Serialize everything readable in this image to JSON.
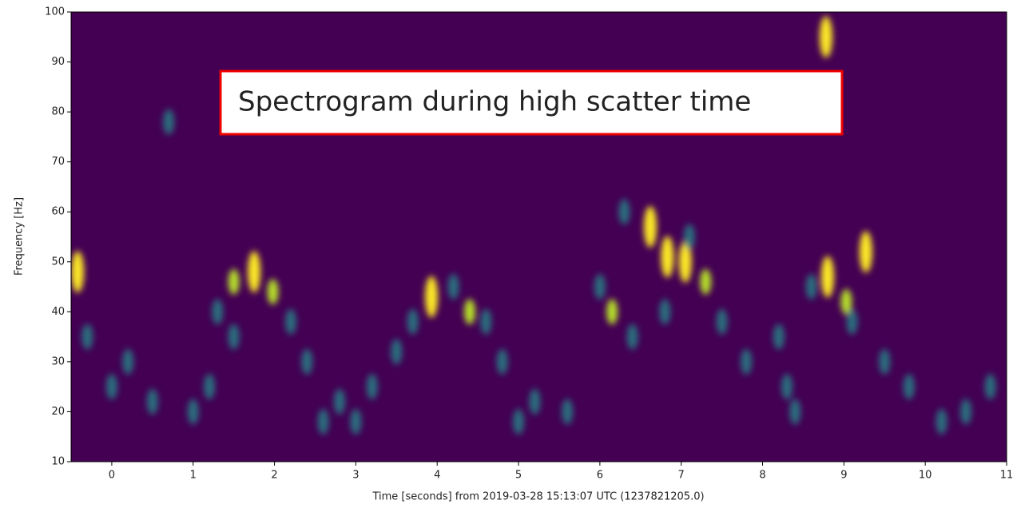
{
  "chart_data": {
    "type": "spectrogram",
    "xlabel": "Time [seconds] from 2019-03-28 15:13:07 UTC (1237821205.0)",
    "ylabel": "Frequency [Hz]",
    "annotation": "Spectrogram during high scatter time",
    "xlim": [
      -0.5,
      11
    ],
    "xticks": [
      0,
      1,
      2,
      3,
      4,
      5,
      6,
      7,
      8,
      9,
      10,
      11
    ],
    "ylim": [
      10,
      100
    ],
    "yticks": [
      10,
      20,
      30,
      40,
      50,
      60,
      70,
      80,
      90,
      100
    ],
    "background": "#440154",
    "hotspots": [
      {
        "color": "#fde725",
        "x": [
          -0.42,
          1.75,
          3.93,
          6.62,
          7.05,
          8.8,
          9.27,
          6.83,
          8.78
        ],
        "y": [
          48,
          48,
          43,
          57,
          50,
          47,
          52,
          51,
          95
        ]
      },
      {
        "color": "#b5de2b",
        "x": [
          1.98,
          6.15,
          9.03,
          4.4,
          7.3,
          1.5
        ],
        "y": [
          44,
          40,
          42,
          40,
          46,
          46
        ]
      },
      {
        "color": "#21918c",
        "x": [
          0.2,
          0.0,
          0.5,
          1.2,
          1.5,
          2.2,
          2.4,
          2.8,
          3.2,
          3.5,
          3.7,
          4.2,
          4.6,
          4.8,
          5.2,
          5.6,
          6.0,
          6.4,
          6.8,
          7.5,
          7.8,
          8.2,
          8.3,
          8.6,
          9.1,
          9.5,
          9.8,
          10.5,
          10.8,
          1.0,
          2.6,
          3.0,
          6.3,
          7.1,
          -0.3,
          10.2,
          0.7,
          1.3,
          8.4,
          5.0
        ],
        "y": [
          30,
          25,
          22,
          25,
          35,
          38,
          30,
          22,
          25,
          32,
          38,
          45,
          38,
          30,
          22,
          20,
          45,
          35,
          40,
          38,
          30,
          35,
          25,
          45,
          38,
          30,
          25,
          20,
          25,
          20,
          18,
          18,
          60,
          55,
          35,
          18,
          78,
          40,
          20,
          18
        ]
      }
    ]
  }
}
